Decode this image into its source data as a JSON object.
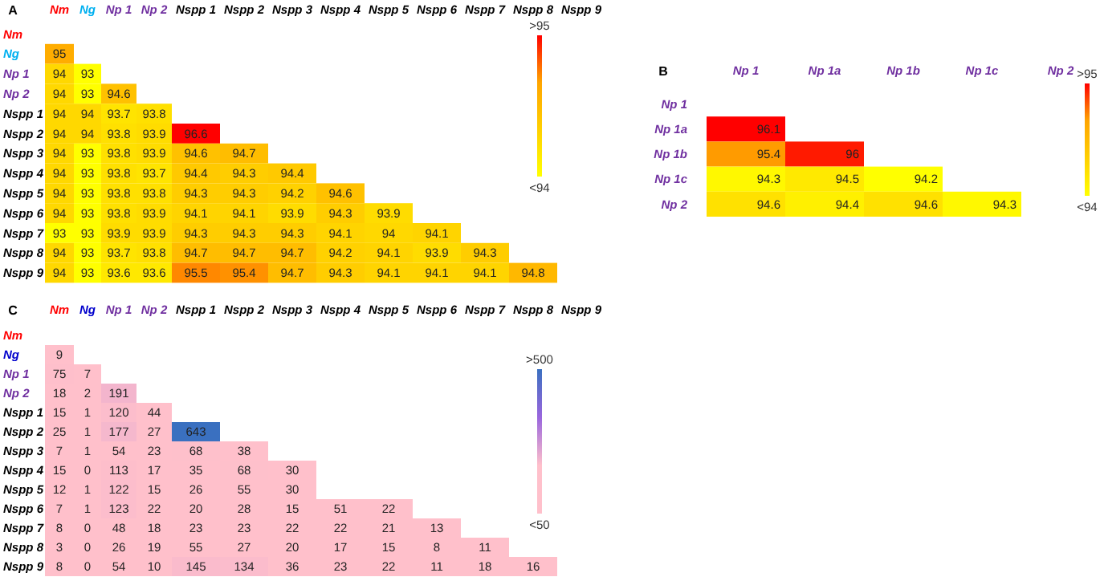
{
  "chart_data": [
    {
      "type": "heatmap",
      "title": "A",
      "data_labels": true,
      "annotations": [
        ">95",
        "<94"
      ],
      "categories": [
        "Nm",
        "Ng",
        "Np 1",
        "Np 2",
        "Nspp 1",
        "Nspp 2",
        "Nspp 3",
        "Nspp 4",
        "Nspp 5",
        "Nspp 6",
        "Nspp 7",
        "Nspp 8",
        "Nspp 9"
      ],
      "y_categories": [
        "Nm",
        "Ng",
        "Np 1",
        "Np 2",
        "Nspp 1",
        "Nspp 2",
        "Nspp 3",
        "Nspp 4",
        "Nspp 5",
        "Nspp 6",
        "Nspp 7",
        "Nspp 8",
        "Nspp 9"
      ],
      "cells": [
        [
          null,
          null,
          null,
          null,
          null,
          null,
          null,
          null,
          null,
          null,
          null,
          null,
          null
        ],
        [
          95,
          null,
          null,
          null,
          null,
          null,
          null,
          null,
          null,
          null,
          null,
          null,
          null
        ],
        [
          94,
          93,
          null,
          null,
          null,
          null,
          null,
          null,
          null,
          null,
          null,
          null,
          null
        ],
        [
          94,
          93,
          94.6,
          null,
          null,
          null,
          null,
          null,
          null,
          null,
          null,
          null,
          null
        ],
        [
          94,
          94,
          93.7,
          93.8,
          null,
          null,
          null,
          null,
          null,
          null,
          null,
          null,
          null
        ],
        [
          94,
          94,
          93.8,
          93.9,
          96.6,
          null,
          null,
          null,
          null,
          null,
          null,
          null,
          null
        ],
        [
          94,
          93,
          93.8,
          93.9,
          94.6,
          94.7,
          null,
          null,
          null,
          null,
          null,
          null,
          null
        ],
        [
          94,
          93,
          93.8,
          93.7,
          94.4,
          94.3,
          94.4,
          null,
          null,
          null,
          null,
          null,
          null
        ],
        [
          94,
          93,
          93.8,
          93.8,
          94.3,
          94.3,
          94.2,
          94.6,
          null,
          null,
          null,
          null,
          null
        ],
        [
          94,
          93,
          93.8,
          93.9,
          94.1,
          94.1,
          93.9,
          94.3,
          93.9,
          null,
          null,
          null,
          null
        ],
        [
          93,
          93,
          93.9,
          93.9,
          94.3,
          94.3,
          94.3,
          94.1,
          94,
          94.1,
          null,
          null,
          null
        ],
        [
          94,
          93,
          93.7,
          93.8,
          94.7,
          94.7,
          94.7,
          94.2,
          94.1,
          93.9,
          94.3,
          null,
          null
        ],
        [
          94,
          93,
          93.6,
          93.6,
          95.5,
          95.4,
          94.7,
          94.3,
          94.1,
          94.1,
          94.1,
          94.8,
          null
        ]
      ]
    },
    {
      "type": "heatmap",
      "title": "B",
      "data_labels": true,
      "annotations": [
        ">95",
        "<94"
      ],
      "categories": [
        "Np 1",
        "Np 1a",
        "Np 1b",
        "Np 1c",
        "Np 2"
      ],
      "y_categories": [
        "Np 1",
        "Np 1a",
        "Np 1b",
        "Np 1c",
        "Np 2"
      ],
      "cells": [
        [
          null,
          null,
          null,
          null,
          null
        ],
        [
          96.1,
          null,
          null,
          null,
          null
        ],
        [
          95.4,
          96,
          null,
          null,
          null
        ],
        [
          94.3,
          94.5,
          94.2,
          null,
          null
        ],
        [
          94.6,
          94.4,
          94.6,
          94.3,
          null
        ]
      ]
    },
    {
      "type": "heatmap",
      "title": "C",
      "data_labels": true,
      "annotations": [
        ">500",
        "<50"
      ],
      "categories": [
        "Nm",
        "Ng",
        "Np 1",
        "Np 2",
        "Nspp 1",
        "Nspp 2",
        "Nspp 3",
        "Nspp 4",
        "Nspp 5",
        "Nspp 6",
        "Nspp 7",
        "Nspp 8",
        "Nspp 9"
      ],
      "y_categories": [
        "Nm",
        "Ng",
        "Np 1",
        "Np 2",
        "Nspp 1",
        "Nspp 2",
        "Nspp 3",
        "Nspp 4",
        "Nspp 5",
        "Nspp 6",
        "Nspp 7",
        "Nspp 8",
        "Nspp 9"
      ],
      "cells": [
        [
          null,
          null,
          null,
          null,
          null,
          null,
          null,
          null,
          null,
          null,
          null,
          null,
          null
        ],
        [
          9,
          null,
          null,
          null,
          null,
          null,
          null,
          null,
          null,
          null,
          null,
          null,
          null
        ],
        [
          75,
          7,
          null,
          null,
          null,
          null,
          null,
          null,
          null,
          null,
          null,
          null,
          null
        ],
        [
          18,
          2,
          191,
          null,
          null,
          null,
          null,
          null,
          null,
          null,
          null,
          null,
          null
        ],
        [
          15,
          1,
          120,
          44,
          null,
          null,
          null,
          null,
          null,
          null,
          null,
          null,
          null
        ],
        [
          25,
          1,
          177,
          27,
          643,
          null,
          null,
          null,
          null,
          null,
          null,
          null,
          null
        ],
        [
          7,
          1,
          54,
          23,
          68,
          38,
          null,
          null,
          null,
          null,
          null,
          null,
          null
        ],
        [
          15,
          0,
          113,
          17,
          35,
          68,
          30,
          null,
          null,
          null,
          null,
          null,
          null
        ],
        [
          12,
          1,
          122,
          15,
          26,
          55,
          30,
          null,
          null,
          null,
          null,
          null,
          null
        ],
        [
          7,
          1,
          123,
          22,
          20,
          28,
          15,
          51,
          22,
          null,
          null,
          null,
          null
        ],
        [
          8,
          0,
          48,
          18,
          23,
          23,
          22,
          22,
          21,
          13,
          null,
          null,
          null
        ],
        [
          3,
          0,
          26,
          19,
          55,
          27,
          20,
          17,
          15,
          8,
          11,
          null,
          null
        ],
        [
          8,
          0,
          54,
          10,
          145,
          134,
          36,
          23,
          22,
          11,
          18,
          16,
          null
        ]
      ]
    }
  ]
}
